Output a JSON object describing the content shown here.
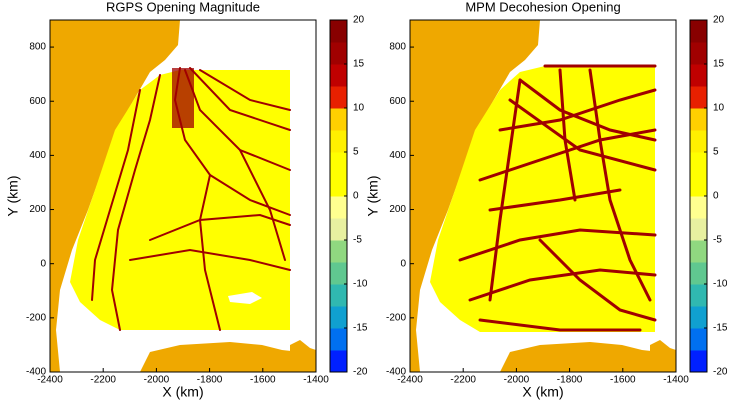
{
  "chart_data": [
    {
      "type": "heatmap",
      "title": "RGPS Opening Magnitude",
      "x_label": "X (km)",
      "y_label": "Y (km)",
      "xlim": [
        -2400,
        -1400
      ],
      "ylim": [
        -400,
        900
      ],
      "xticks": [
        -2400,
        -2200,
        -2000,
        -1800,
        -1600,
        -1400
      ],
      "yticks": [
        -400,
        -200,
        0,
        200,
        400,
        600,
        800
      ],
      "colorbar": {
        "clim": [
          -20,
          20
        ],
        "ticks": [
          -20,
          -15,
          -10,
          -5,
          0,
          5,
          10,
          15,
          20
        ],
        "colormap": [
          "#0020ff",
          "#0070f0",
          "#10a0d0",
          "#30b8b0",
          "#60c890",
          "#90d880",
          "#e8f0a0",
          "#ffff90",
          "#ffff00",
          "#ffff00",
          "#fff000",
          "#ffd000",
          "#e82000",
          "#c00000",
          "#a00000",
          "#880000"
        ]
      }
    },
    {
      "type": "heatmap",
      "title": "MPM Decohesion Opening",
      "x_label": "X (km)",
      "y_label": "Y (km)",
      "xlim": [
        -2400,
        -1400
      ],
      "ylim": [
        -400,
        900
      ],
      "xticks": [
        -2400,
        -2200,
        -2000,
        -1800,
        -1600,
        -1400
      ],
      "yticks": [
        -400,
        -200,
        0,
        200,
        400,
        600,
        800
      ],
      "colorbar": {
        "clim": [
          -20,
          20
        ],
        "ticks": [
          -20,
          -15,
          -10,
          -5,
          0,
          5,
          10,
          15,
          20
        ],
        "colormap": [
          "#0020ff",
          "#0070f0",
          "#10a0d0",
          "#30b8b0",
          "#60c890",
          "#90d880",
          "#e8f0a0",
          "#ffff90",
          "#ffff00",
          "#ffff00",
          "#fff000",
          "#ffd000",
          "#e82000",
          "#c00000",
          "#a00000",
          "#880000"
        ]
      }
    }
  ]
}
